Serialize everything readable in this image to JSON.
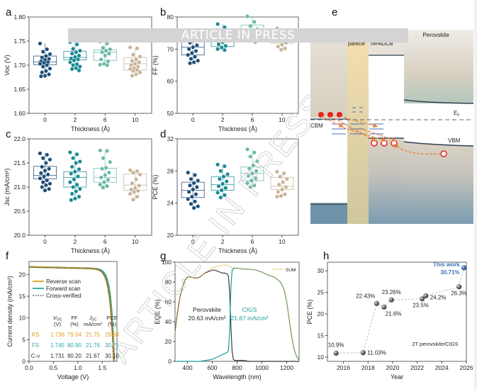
{
  "watermark": {
    "banner": "ARTICLE IN PRESS",
    "diagonal": "ARTICLE IN PRESS"
  },
  "colors": {
    "t0": "#1f4e79",
    "t2": "#1a8a94",
    "t6": "#6bb8a8",
    "t10": "#c8b49a",
    "reverse": "#e0a020",
    "forward": "#2aaaa8",
    "cv": "#333333",
    "cigs": "#1a9a9a",
    "sum": "#e0a020",
    "this_work": "#3a6fb5"
  },
  "chart_data": [
    {
      "panel": "a",
      "type": "box-scatter",
      "ylabel": "V_OC (V)",
      "xlabel": "Thickness (Å)",
      "categories": [
        "0",
        "2",
        "6",
        "10"
      ],
      "ylim": [
        1.6,
        1.8
      ],
      "yticks": [
        "1.60",
        "1.65",
        "1.70",
        "1.75",
        "1.80"
      ],
      "boxes": [
        {
          "q1": 1.701,
          "median": 1.707,
          "q3": 1.719
        },
        {
          "q1": 1.711,
          "median": 1.716,
          "q3": 1.729
        },
        {
          "q1": 1.71,
          "median": 1.727,
          "q3": 1.732
        },
        {
          "q1": 1.69,
          "median": 1.703,
          "q3": 1.716
        }
      ],
      "points": [
        [
          1.745,
          1.733,
          1.728,
          1.723,
          1.719,
          1.716,
          1.713,
          1.711,
          1.708,
          1.706,
          1.705,
          1.703,
          1.7,
          1.697,
          1.693,
          1.688,
          1.685,
          1.681,
          1.678,
          1.677
        ],
        [
          1.748,
          1.743,
          1.734,
          1.73,
          1.727,
          1.724,
          1.72,
          1.717,
          1.714,
          1.712,
          1.71,
          1.706,
          1.702,
          1.7,
          1.697,
          1.694,
          1.692,
          1.689
        ],
        [
          1.749,
          1.745,
          1.736,
          1.733,
          1.73,
          1.727,
          1.724,
          1.72,
          1.712,
          1.708,
          1.703,
          1.701,
          1.7
        ],
        [
          1.737,
          1.735,
          1.722,
          1.718,
          1.712,
          1.709,
          1.706,
          1.703,
          1.7,
          1.697,
          1.694,
          1.692,
          1.69,
          1.688,
          1.685,
          1.681,
          1.678
        ]
      ]
    },
    {
      "panel": "b",
      "type": "box-scatter",
      "ylabel": "FF (%)",
      "xlabel": "Thickness (Å)",
      "categories": [
        "0",
        "2",
        "6",
        "10"
      ],
      "ylim": [
        50,
        80
      ],
      "yticks": [
        "50",
        "60",
        "70",
        "80"
      ],
      "boxes": [
        {
          "q1": 68.2,
          "median": 70.6,
          "q3": 73.1
        },
        {
          "q1": 70.8,
          "median": 72.2,
          "q3": 75.3
        },
        {
          "q1": 74.0,
          "median": 75.5,
          "q3": 77.5
        },
        {
          "q1": 71.8,
          "median": 72.4,
          "q3": 75.4
        }
      ],
      "points": [
        [
          75.0,
          74.5,
          73.8,
          73.2,
          72.6,
          72.0,
          71.2,
          70.6,
          70.0,
          69.4,
          68.8,
          68.2,
          67.6,
          67.0,
          66.4,
          65.9,
          65.6
        ],
        [
          77.8,
          76.8,
          75.8,
          75.2,
          74.5,
          73.8,
          73.0,
          72.2,
          71.5,
          71.0,
          70.5,
          70.0,
          69.7
        ],
        [
          80.2,
          78.5,
          77.2,
          76.2,
          75.5,
          74.8,
          74.0,
          73.2,
          72.6,
          72.2
        ],
        [
          76.5,
          75.2,
          74.5,
          73.8,
          73.2,
          72.6,
          72.0,
          71.4,
          70.8,
          70.2,
          69.8
        ]
      ]
    },
    {
      "panel": "c",
      "type": "box-scatter",
      "ylabel": "J_SC (mA/cm²)",
      "xlabel": "Thickness (Å)",
      "categories": [
        "0",
        "2",
        "6",
        "10"
      ],
      "ylim": [
        20.0,
        22.0
      ],
      "yticks": [
        "20.0",
        "20.5",
        "21.0",
        "21.5",
        "22.0"
      ],
      "boxes": [
        {
          "q1": 21.17,
          "median": 21.24,
          "q3": 21.43
        },
        {
          "q1": 21.0,
          "median": 21.2,
          "q3": 21.32
        },
        {
          "q1": 21.1,
          "median": 21.2,
          "q3": 21.39
        },
        {
          "q1": 20.93,
          "median": 21.04,
          "q3": 21.27
        }
      ],
      "points": [
        [
          21.7,
          21.67,
          21.6,
          21.57,
          21.5,
          21.42,
          21.38,
          21.34,
          21.29,
          21.26,
          21.22,
          21.18,
          21.14,
          21.1,
          21.07,
          21.04,
          21.0,
          20.96,
          20.93
        ],
        [
          21.72,
          21.68,
          21.6,
          21.53,
          21.5,
          21.42,
          21.37,
          21.32,
          21.28,
          21.22,
          21.16,
          21.1,
          21.05,
          21.0,
          20.96,
          20.91,
          20.86,
          20.8,
          20.76,
          20.73
        ],
        [
          21.76,
          21.75,
          21.6,
          21.52,
          21.4,
          21.38,
          21.3,
          21.25,
          21.2,
          21.15,
          21.1,
          21.05,
          21.02,
          20.99
        ],
        [
          21.35,
          21.33,
          21.3,
          21.26,
          21.16,
          21.08,
          21.03,
          20.98,
          20.95,
          20.92,
          20.9,
          20.86,
          20.8,
          20.74
        ]
      ]
    },
    {
      "panel": "d",
      "type": "box-scatter",
      "ylabel": "PCE (%)",
      "xlabel": "Thickness (Å)",
      "categories": [
        "0",
        "2",
        "6",
        "10"
      ],
      "ylim": [
        20,
        32
      ],
      "yticks": [
        "20",
        "24",
        "28",
        "32"
      ],
      "boxes": [
        {
          "q1": 24.7,
          "median": 25.6,
          "q3": 26.6
        },
        {
          "q1": 25.6,
          "median": 26.3,
          "q3": 27.3
        },
        {
          "q1": 26.8,
          "median": 27.7,
          "q3": 28.5
        },
        {
          "q1": 25.7,
          "median": 26.1,
          "q3": 27.2
        }
      ],
      "points": [
        [
          27.8,
          27.5,
          27.0,
          26.8,
          26.5,
          26.2,
          26.0,
          25.7,
          25.4,
          25.1,
          24.8,
          24.5,
          24.2,
          23.9,
          23.6,
          23.4
        ],
        [
          28.8,
          28.6,
          28.0,
          27.6,
          27.3,
          27.0,
          26.7,
          26.4,
          26.1,
          25.9,
          25.6,
          25.3,
          25.0,
          24.7
        ],
        [
          30.7,
          30.3,
          29.8,
          29.2,
          28.7,
          28.3,
          28.0,
          27.7,
          27.4,
          27.1,
          26.8,
          26.5,
          26.2,
          26.0
        ],
        [
          27.9,
          27.7,
          27.3,
          27.0,
          26.6,
          26.3,
          26.0,
          25.7,
          25.4,
          25.1,
          24.9,
          24.8
        ]
      ]
    },
    {
      "panel": "f",
      "type": "line",
      "xlabel": "Voltage (V)",
      "ylabel": "Current density (mA/cm²)",
      "xlim": [
        0.0,
        1.8
      ],
      "ylim": [
        0,
        23
      ],
      "xticks": [
        "0.0",
        "0.5",
        "1.0",
        "1.5"
      ],
      "yticks": [
        "0",
        "5",
        "10",
        "15",
        "20"
      ],
      "legend": [
        "Reverse scan",
        "Forward scan",
        "Cross-verified"
      ],
      "series": [
        {
          "name": "Reverse scan",
          "jsc": 21.75,
          "voc": 1.736,
          "ff": 79.04
        },
        {
          "name": "Forward scan",
          "jsc": 21.76,
          "voc": 1.745,
          "ff": 80.9
        },
        {
          "name": "Cross-verified",
          "jsc": 21.67,
          "voc": 1.731,
          "ff": 80.2
        }
      ],
      "table": {
        "headers": [
          {
            "main": "V",
            "sub": "OC",
            "unit": "(V)"
          },
          {
            "main": "FF",
            "sub": "",
            "unit": "(%)"
          },
          {
            "main": "J",
            "sub": "SC",
            "unit": "mA/cm²"
          },
          {
            "main": "PCE",
            "sub": "",
            "unit": "(%)"
          }
        ],
        "rows": [
          {
            "label": "RS",
            "values": [
              "1.736",
              "79.04",
              "21.75",
              "29.84"
            ]
          },
          {
            "label": "FS",
            "values": [
              "1.745",
              "80.90",
              "21.76",
              "30.71"
            ]
          },
          {
            "label": "C-v",
            "values": [
              "1.731",
              "80.20",
              "21.67",
              "30.10"
            ]
          }
        ]
      }
    },
    {
      "panel": "g",
      "type": "line",
      "xlabel": "Wavelength (nm)",
      "ylabel": "EQE (%)",
      "xlim": [
        300,
        1300
      ],
      "ylim": [
        0,
        100
      ],
      "xticks": [
        "400",
        "600",
        "800",
        "1000",
        "1200"
      ],
      "yticks": [
        "0",
        "20",
        "40",
        "60",
        "80",
        "100"
      ],
      "legend": [
        "SUM"
      ],
      "annotations": [
        {
          "text": "Perovskite",
          "sub": "20.63 mA/cm²"
        },
        {
          "text": "CIGS",
          "sub": "21.67 mA/cm²"
        }
      ],
      "series": [
        {
          "name": "Perovskite",
          "x": [
            300,
            320,
            340,
            360,
            380,
            400,
            420,
            450,
            480,
            500,
            520,
            540,
            560,
            580,
            600,
            620,
            640,
            660,
            680,
            700,
            720,
            730,
            740,
            750,
            760,
            770,
            780,
            800,
            850,
            900,
            1000,
            1100,
            1200,
            1300
          ],
          "y": [
            30,
            50,
            65,
            75,
            82,
            85,
            85,
            84,
            84,
            85,
            87,
            89,
            90,
            91,
            92,
            92,
            91,
            90,
            89,
            89,
            88,
            86,
            70,
            35,
            10,
            2,
            1,
            1,
            1,
            0,
            0,
            0,
            0,
            0
          ]
        },
        {
          "name": "CIGS",
          "x": [
            300,
            400,
            500,
            550,
            600,
            650,
            700,
            720,
            730,
            740,
            750,
            760,
            780,
            800,
            850,
            900,
            950,
            1000,
            1050,
            1100,
            1150,
            1180,
            1200,
            1220,
            1240,
            1260,
            1280,
            1300
          ],
          "y": [
            0,
            0,
            0,
            1,
            2,
            5,
            8,
            9,
            11,
            30,
            75,
            92,
            94,
            94,
            93,
            93,
            92,
            90,
            87,
            85,
            80,
            72,
            60,
            42,
            25,
            12,
            5,
            1
          ]
        },
        {
          "name": "SUM",
          "x": [
            300,
            320,
            340,
            360,
            380,
            400,
            420,
            450,
            480,
            500,
            520,
            540,
            560,
            580,
            600,
            620,
            640,
            660,
            680,
            700,
            720,
            730,
            740,
            750,
            760,
            780,
            800,
            850,
            900,
            950,
            1000,
            1050,
            1100,
            1150,
            1180,
            1200,
            1220,
            1240,
            1260,
            1280,
            1300
          ],
          "y": [
            30,
            50,
            65,
            75,
            82,
            85,
            85,
            84,
            84,
            85,
            87,
            89,
            91,
            93,
            94,
            95,
            96,
            96,
            97,
            97,
            97,
            97,
            96,
            95,
            94,
            94,
            94,
            93,
            93,
            92,
            90,
            87,
            85,
            80,
            72,
            60,
            42,
            25,
            12,
            5,
            1
          ]
        }
      ]
    },
    {
      "panel": "h",
      "type": "scatter",
      "xlabel": "Year",
      "ylabel": "PCE (%)",
      "xlim": [
        2014.7,
        2026
      ],
      "ylim": [
        9,
        32
      ],
      "xticks": [
        "2016",
        "2018",
        "2020",
        "2022",
        "2024",
        "2026"
      ],
      "yticks": [
        "10",
        "15",
        "20",
        "25",
        "30"
      ],
      "annotation": "2T perovskite/CIGS",
      "points": [
        {
          "x": 2015.4,
          "y": 10.9,
          "label": "10.9%"
        },
        {
          "x": 2017.6,
          "y": 11.03,
          "label": "11.03%"
        },
        {
          "x": 2018.7,
          "y": 22.43,
          "label": "22.43%"
        },
        {
          "x": 2019.3,
          "y": 21.6,
          "label": "21.6%"
        },
        {
          "x": 2019.9,
          "y": 23.26,
          "label": "23.26%"
        },
        {
          "x": 2022.4,
          "y": 23.5,
          "label": "23.5%"
        },
        {
          "x": 2022.7,
          "y": 24.2,
          "label": "24.2%"
        },
        {
          "x": 2025.4,
          "y": 26.3,
          "label": "26.3%"
        },
        {
          "x": 2025.8,
          "y": 30.71,
          "label": "30.71%",
          "highlight": "This work"
        }
      ]
    },
    {
      "panel": "e",
      "type": "diagram",
      "labels": {
        "particle": "particle",
        "layer": "/4PADCB",
        "perovskite": "Perovskite",
        "ef": "E",
        "ef_sub": "F",
        "cbm": "CBM",
        "vbm": "VBM"
      }
    }
  ],
  "panel_letters": [
    "a",
    "b",
    "c",
    "d",
    "e",
    "f",
    "g",
    "h"
  ]
}
